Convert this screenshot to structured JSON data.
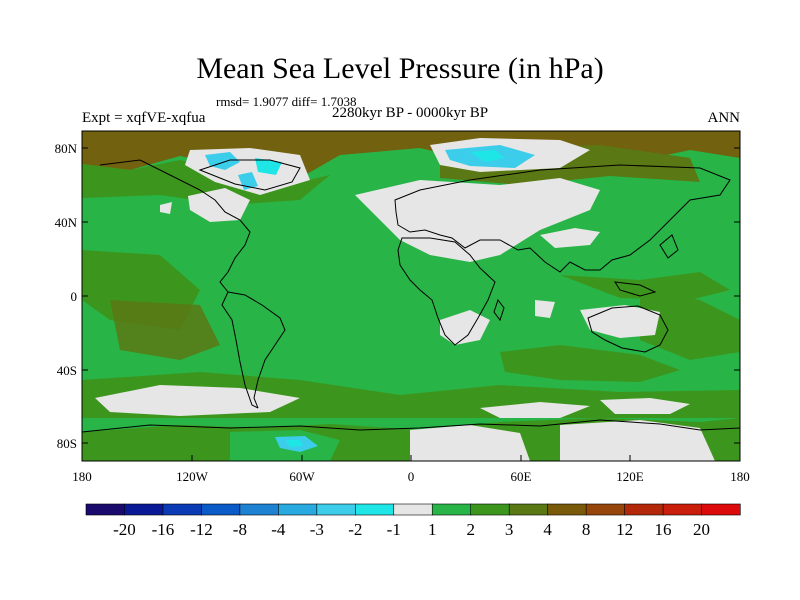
{
  "title": "Mean Sea Level Pressure (in hPa)",
  "stats_text": "rmsd= 1.9077 diff= 1.7038",
  "left_label": "Expt = xqfVE-xqfua",
  "center_label": "2280kyr BP - 0000kyr BP",
  "right_label": "ANN",
  "lat_ticks": [
    "80N",
    "40N",
    "0",
    "40S",
    "80S"
  ],
  "lon_ticks": [
    "180",
    "120W",
    "60W",
    "0",
    "60E",
    "120E",
    "180"
  ],
  "colorbar": {
    "labels": [
      "-20",
      "-16",
      "-12",
      "-8",
      "-4",
      "-3",
      "-2",
      "-1",
      "1",
      "2",
      "3",
      "4",
      "8",
      "12",
      "16",
      "20"
    ],
    "colors": [
      "#1a0a6e",
      "#0a1a96",
      "#0a3ab4",
      "#0a5ac8",
      "#1e82d2",
      "#28aae0",
      "#3ccdeb",
      "#1ee6e6",
      "#e6e6e6",
      "#28b446",
      "#3c961e",
      "#5a7814",
      "#785a0a",
      "#96460a",
      "#b4280a",
      "#c81e0a",
      "#dc0a0a"
    ]
  },
  "palette": {
    "land_outline": "#000000",
    "near_zero": "#e6e6e6",
    "green": "#28b446",
    "olive": "#3c961e",
    "dark_olive": "#5a7814",
    "brown": "#785a0a",
    "light_blue": "#3ccdeb",
    "cyan": "#1ee6e6"
  }
}
